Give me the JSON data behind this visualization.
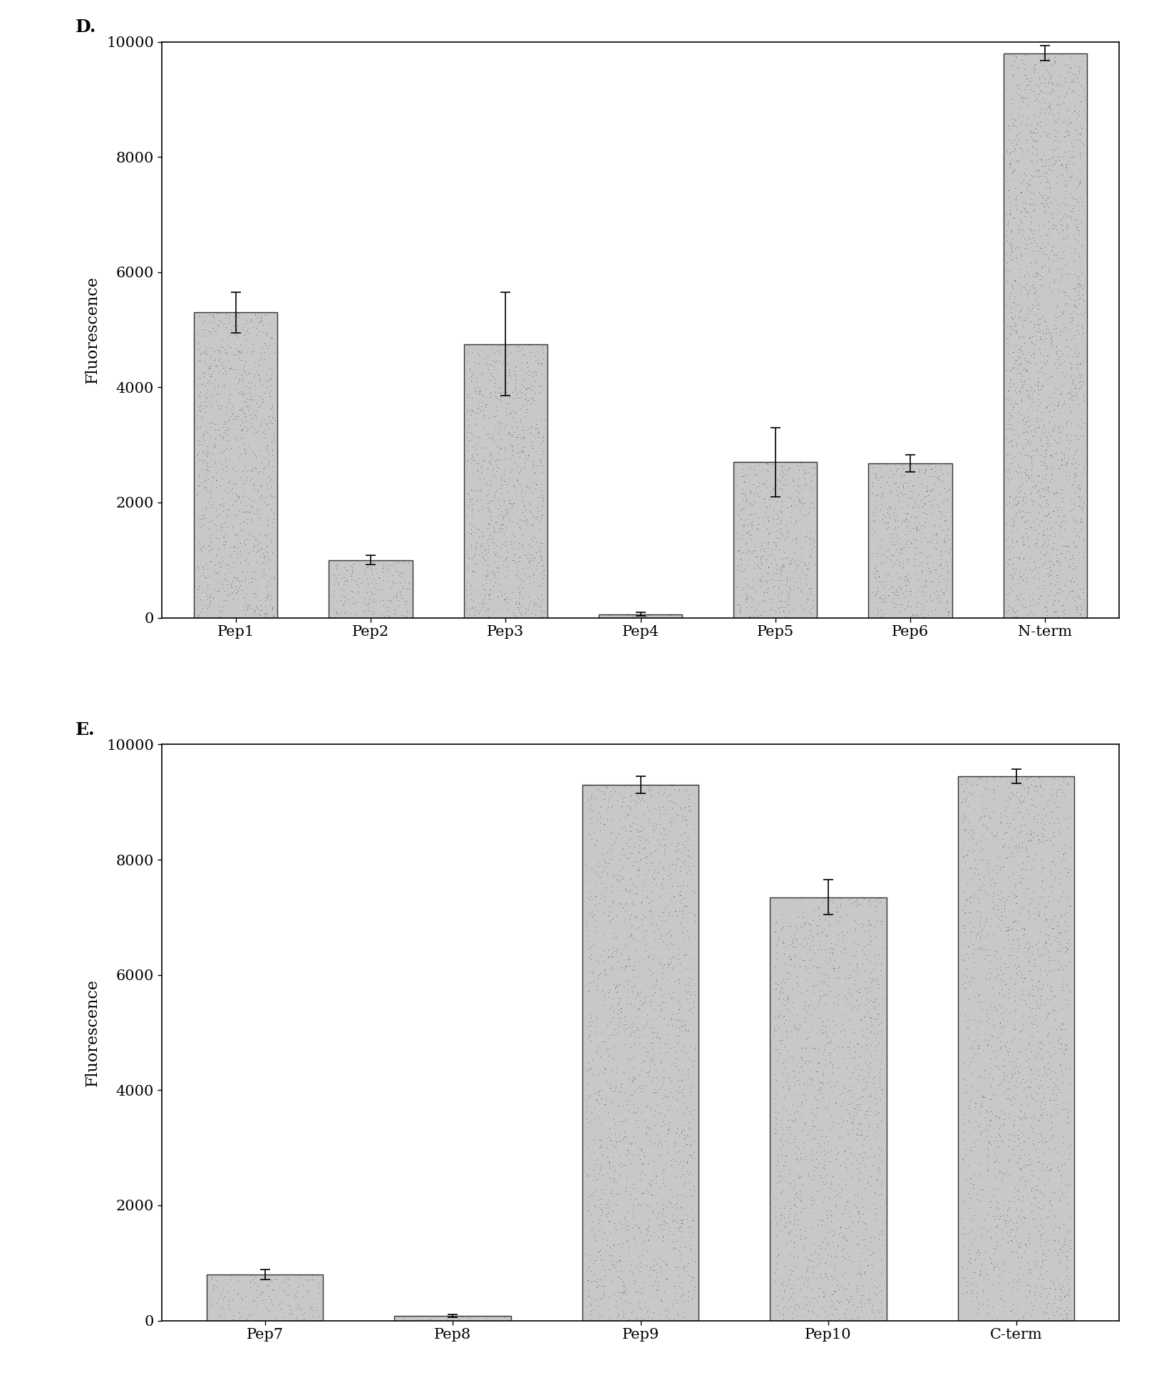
{
  "panel_D": {
    "categories": [
      "Pep1",
      "Pep2",
      "Pep3",
      "Pep4",
      "Pep5",
      "Pep6",
      "N-term"
    ],
    "values": [
      5300,
      1000,
      4750,
      60,
      2700,
      2680,
      9800
    ],
    "errors": [
      350,
      80,
      900,
      30,
      600,
      150,
      130
    ],
    "ylabel": "Fluorescence",
    "ylim": [
      0,
      10000
    ],
    "yticks": [
      0,
      2000,
      4000,
      6000,
      8000,
      10000
    ],
    "label": "D."
  },
  "panel_E": {
    "categories": [
      "Pep7",
      "Pep8",
      "Pep9",
      "Pep10",
      "C-term"
    ],
    "values": [
      800,
      80,
      9300,
      7350,
      9450
    ],
    "errors": [
      90,
      20,
      150,
      300,
      120
    ],
    "ylabel": "Fluorescence",
    "ylim": [
      0,
      10000
    ],
    "yticks": [
      0,
      2000,
      4000,
      6000,
      8000,
      10000
    ],
    "label": "E."
  },
  "bar_color": "#c8c8c8",
  "bar_edgecolor": "#333333",
  "background_color": "#ffffff",
  "font_size_ticks": 15,
  "font_size_label": 16,
  "font_size_panel": 18,
  "stipple_density": 3000,
  "stipple_size": 1.5,
  "stipple_color": "#555555"
}
